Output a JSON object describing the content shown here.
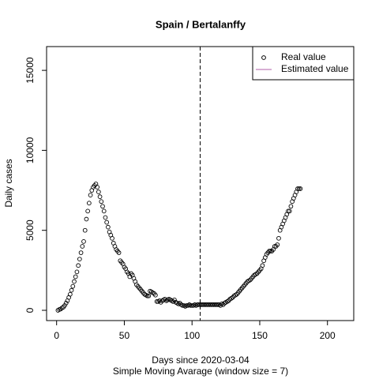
{
  "chart_data": {
    "type": "scatter",
    "title": "Spain / Bertalanffy",
    "x_label": "Days since 2020-03-04",
    "subtitle": "Simple Moving Avarage (window size = 7)",
    "y_label": "Daily cases",
    "xlim": [
      -7.4,
      219.4
    ],
    "ylim": [
      -642,
      16486
    ],
    "xticks": [
      0,
      50,
      100,
      150,
      200
    ],
    "yticks": [
      0,
      5000,
      10000,
      15000
    ],
    "vline": 106,
    "legend_position": "topright",
    "series": [
      {
        "name": "Real value",
        "color": "#000000",
        "x": [
          1,
          2,
          3,
          4,
          5,
          6,
          7,
          8,
          9,
          10,
          11,
          12,
          13,
          14,
          15,
          16,
          17,
          18,
          19,
          20,
          21,
          22,
          23,
          24,
          25,
          26,
          27,
          28,
          29,
          30,
          31,
          32,
          33,
          34,
          35,
          36,
          37,
          38,
          39,
          40,
          41,
          42,
          43,
          44,
          45,
          46,
          47,
          48,
          49,
          50,
          51,
          52,
          53,
          54,
          55,
          56,
          57,
          58,
          59,
          60,
          61,
          62,
          63,
          64,
          65,
          66,
          67,
          68,
          69,
          70,
          71,
          72,
          73,
          74,
          75,
          76,
          77,
          78,
          79,
          80,
          81,
          82,
          83,
          84,
          85,
          86,
          87,
          88,
          89,
          90,
          91,
          92,
          93,
          94,
          95,
          96,
          97,
          98,
          99,
          100,
          101,
          102,
          103,
          104,
          105,
          106,
          107,
          108,
          109,
          110,
          111,
          112,
          113,
          114,
          115,
          116,
          117,
          118,
          119,
          120,
          121,
          122,
          123,
          124,
          125,
          126,
          127,
          128,
          129,
          130,
          131,
          132,
          133,
          134,
          135,
          136,
          137,
          138,
          139,
          140,
          141,
          142,
          143,
          144,
          145,
          146,
          147,
          148,
          149,
          150,
          151,
          152,
          153,
          154,
          155,
          156,
          157,
          158,
          159,
          160,
          161,
          162,
          163,
          164,
          165,
          166,
          167,
          168,
          169,
          170,
          171,
          172,
          173,
          174,
          175,
          176,
          177,
          178,
          179,
          180
        ],
        "values": [
          0,
          50,
          80,
          150,
          200,
          300,
          450,
          600,
          800,
          1000,
          1250,
          1500,
          1800,
          2100,
          2400,
          2800,
          3200,
          3600,
          4000,
          4300,
          5000,
          5700,
          6200,
          6700,
          7200,
          7500,
          7700,
          7800,
          7900,
          7700,
          7400,
          7100,
          6800,
          6500,
          6200,
          5800,
          5500,
          5200,
          4900,
          4700,
          4500,
          4200,
          4000,
          3800,
          3700,
          3600,
          3100,
          3000,
          2900,
          2700,
          2600,
          2400,
          2300,
          2100,
          2300,
          2200,
          2000,
          1800,
          1600,
          1500,
          1400,
          1300,
          1200,
          1100,
          1000,
          950,
          900,
          900,
          1200,
          1150,
          1100,
          1050,
          950,
          550,
          550,
          600,
          500,
          600,
          650,
          700,
          600,
          650,
          700,
          650,
          600,
          550,
          650,
          500,
          450,
          400,
          450,
          350,
          300,
          300,
          250,
          300,
          300,
          350,
          300,
          300,
          300,
          350,
          300,
          350,
          350,
          350,
          350,
          350,
          350,
          350,
          350,
          350,
          350,
          350,
          350,
          350,
          350,
          350,
          350,
          350,
          300,
          400,
          350,
          450,
          500,
          550,
          600,
          700,
          750,
          800,
          900,
          950,
          1000,
          1100,
          1200,
          1300,
          1400,
          1500,
          1600,
          1700,
          1800,
          1850,
          1900,
          2000,
          2100,
          2200,
          2250,
          2300,
          2400,
          2500,
          2600,
          2800,
          3100,
          3300,
          3500,
          3600,
          3700,
          3700,
          3700,
          3800,
          4000,
          4000,
          4100,
          4500,
          5000,
          5200,
          5400,
          5600,
          5800,
          6000,
          6200,
          6200,
          6500,
          6800,
          7000,
          7200,
          7400,
          7600,
          7600,
          7600
        ]
      },
      {
        "name": "Estimated value",
        "color": "#b05fa8"
      }
    ]
  }
}
